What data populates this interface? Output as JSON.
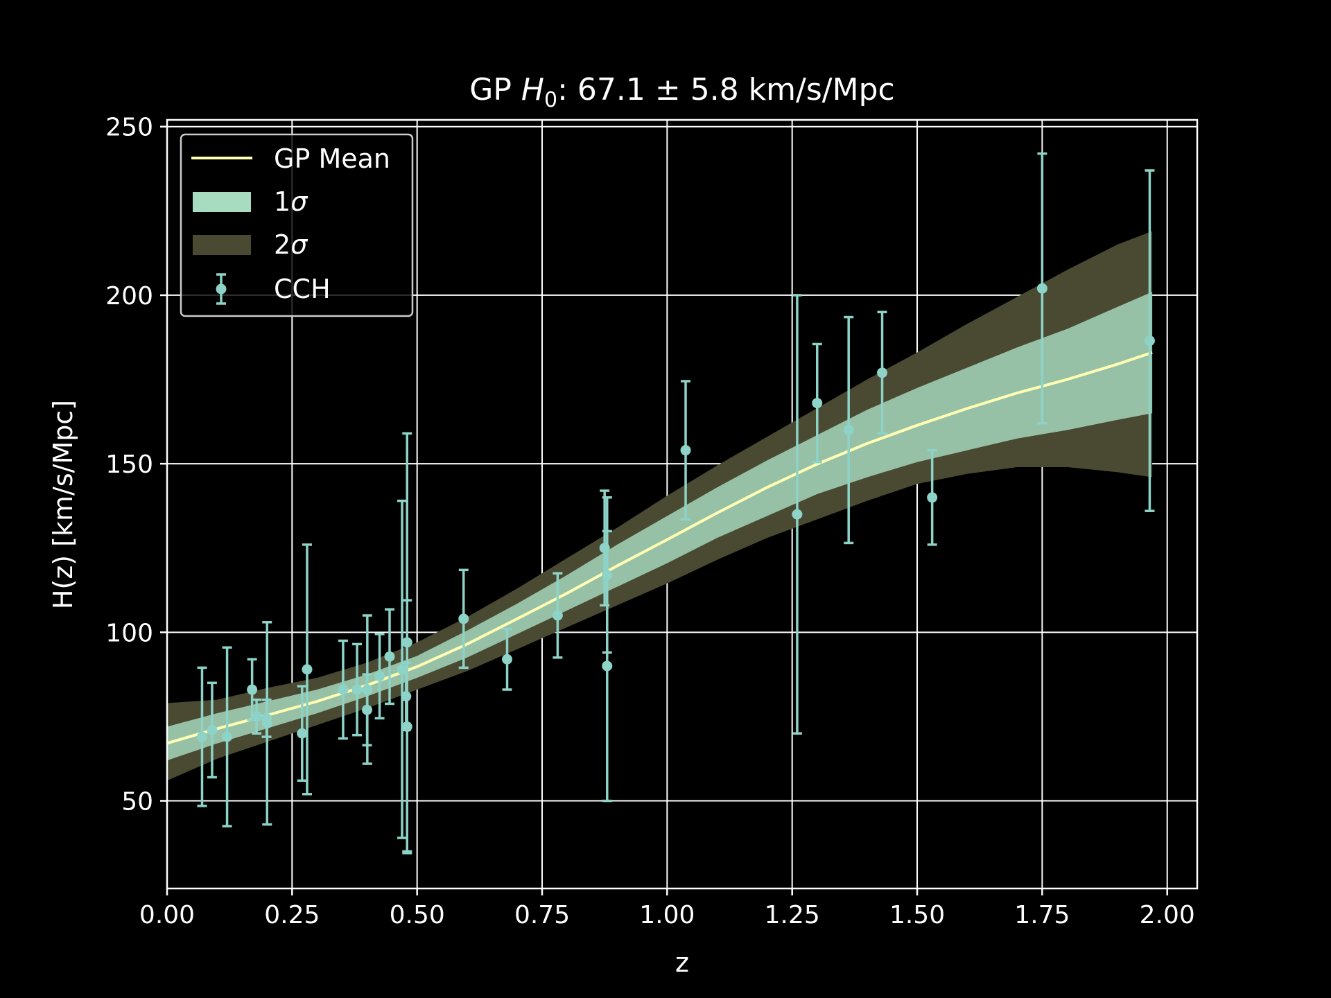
{
  "chart_data": {
    "type": "scatter",
    "title": {
      "prefix": "GP ",
      "symbol": "H",
      "subscript": "0",
      "suffix": ": 67.1 ± 5.8 km/s/Mpc"
    },
    "xlabel": "z",
    "ylabel": "H(z) [km/s/Mpc]",
    "xlim": [
      0.0,
      2.06
    ],
    "ylim": [
      24,
      252
    ],
    "xticks": [
      {
        "value": 0.0,
        "label": "0.00"
      },
      {
        "value": 0.25,
        "label": "0.25"
      },
      {
        "value": 0.5,
        "label": "0.50"
      },
      {
        "value": 0.75,
        "label": "0.75"
      },
      {
        "value": 1.0,
        "label": "1.00"
      },
      {
        "value": 1.25,
        "label": "1.25"
      },
      {
        "value": 1.5,
        "label": "1.50"
      },
      {
        "value": 1.75,
        "label": "1.75"
      },
      {
        "value": 2.0,
        "label": "2.00"
      }
    ],
    "yticks": [
      {
        "value": 50,
        "label": "50"
      },
      {
        "value": 100,
        "label": "100"
      },
      {
        "value": 150,
        "label": "150"
      },
      {
        "value": 200,
        "label": "200"
      },
      {
        "value": 250,
        "label": "250"
      }
    ],
    "grid": true,
    "legend_position": "top-left",
    "legend": [
      {
        "key": "mean",
        "name": "GP Mean",
        "symbol": ""
      },
      {
        "key": "band1",
        "name": "1",
        "symbol": "σ"
      },
      {
        "key": "band2",
        "name": "2",
        "symbol": "σ"
      },
      {
        "key": "data",
        "name": "CCH",
        "symbol": ""
      }
    ],
    "colors": {
      "mean": "#ffffb3",
      "band1": "#a8dcc0",
      "band2": "#4a4a33",
      "data": "#8dd3c7",
      "axes": "#ffffff",
      "grid": "#ffffff"
    },
    "gp_curve": {
      "x": [
        0.0,
        0.1,
        0.2,
        0.3,
        0.4,
        0.5,
        0.6,
        0.7,
        0.8,
        0.9,
        1.0,
        1.1,
        1.2,
        1.3,
        1.4,
        1.5,
        1.6,
        1.7,
        1.8,
        1.9,
        1.97
      ],
      "mean": [
        67.1,
        71.4,
        75.4,
        79.5,
        84.3,
        89.8,
        96.5,
        104.0,
        111.6,
        119.7,
        127.5,
        135.4,
        143.0,
        149.9,
        156.0,
        161.4,
        166.4,
        171.0,
        175.0,
        179.5,
        183.0
      ],
      "sigma1_lower": [
        62.0,
        67.0,
        71.5,
        76.0,
        81.0,
        86.5,
        92.5,
        99.5,
        106.5,
        113.5,
        120.5,
        128.0,
        134.5,
        141.0,
        146.0,
        150.5,
        154.0,
        157.5,
        160.0,
        163.0,
        165.0
      ],
      "sigma1_upper": [
        72.0,
        76.0,
        79.5,
        83.0,
        87.5,
        93.0,
        100.5,
        108.5,
        117.0,
        126.0,
        134.5,
        143.0,
        151.0,
        158.5,
        166.0,
        172.5,
        178.5,
        184.5,
        190.0,
        196.5,
        201.0
      ],
      "sigma2_lower": [
        56.0,
        62.5,
        67.5,
        72.5,
        77.5,
        83.0,
        88.5,
        95.0,
        101.5,
        108.0,
        114.5,
        121.5,
        128.0,
        133.5,
        139.0,
        144.0,
        147.0,
        149.0,
        149.0,
        147.5,
        146.0
      ],
      "sigma2_upper": [
        79.0,
        80.0,
        83.5,
        86.5,
        91.0,
        97.0,
        104.5,
        113.0,
        122.0,
        131.0,
        140.5,
        149.5,
        158.0,
        166.5,
        175.0,
        183.0,
        191.5,
        199.5,
        207.5,
        215.0,
        219.0
      ]
    },
    "points": [
      {
        "z": 0.07,
        "h": 69.0,
        "err": 20.5
      },
      {
        "z": 0.09,
        "h": 71.0,
        "err": 14.0
      },
      {
        "z": 0.12,
        "h": 69.0,
        "err": 26.5
      },
      {
        "z": 0.17,
        "h": 83.0,
        "err": 9.0
      },
      {
        "z": 0.179,
        "h": 75.0,
        "err": 5.0
      },
      {
        "z": 0.199,
        "h": 74.5,
        "err": 5.5
      },
      {
        "z": 0.2,
        "h": 73.0,
        "err": 30.0
      },
      {
        "z": 0.27,
        "h": 70.0,
        "err": 14.0
      },
      {
        "z": 0.28,
        "h": 89.0,
        "err": 37.0
      },
      {
        "z": 0.352,
        "h": 83.0,
        "err": 14.5
      },
      {
        "z": 0.38,
        "h": 83.0,
        "err": 13.5
      },
      {
        "z": 0.4,
        "h": 77.0,
        "err": 10.5
      },
      {
        "z": 0.4004,
        "h": 83.0,
        "err": 22.0
      },
      {
        "z": 0.425,
        "h": 87.0,
        "err": 12.5
      },
      {
        "z": 0.445,
        "h": 92.8,
        "err": 14.0
      },
      {
        "z": 0.47,
        "h": 89.0,
        "err": 50.0
      },
      {
        "z": 0.478,
        "h": 81.0,
        "err": 10.0
      },
      {
        "z": 0.48,
        "h": 97.0,
        "err": 62.0
      },
      {
        "z": 0.48,
        "h": 72.0,
        "err": 37.5
      },
      {
        "z": 0.593,
        "h": 104.0,
        "err": 14.5
      },
      {
        "z": 0.68,
        "h": 92.0,
        "err": 9.0
      },
      {
        "z": 0.781,
        "h": 105.0,
        "err": 12.5
      },
      {
        "z": 0.875,
        "h": 125.0,
        "err": 17.0
      },
      {
        "z": 0.88,
        "h": 90.0,
        "err": 40.0
      },
      {
        "z": 0.88,
        "h": 117.0,
        "err": 23.0
      },
      {
        "z": 1.037,
        "h": 154.0,
        "err": 20.5
      },
      {
        "z": 1.26,
        "h": 135.0,
        "err": 65.0
      },
      {
        "z": 1.3,
        "h": 168.0,
        "err": 17.5
      },
      {
        "z": 1.363,
        "h": 160.0,
        "err": 33.5
      },
      {
        "z": 1.43,
        "h": 177.0,
        "err": 18.0
      },
      {
        "z": 1.53,
        "h": 140.0,
        "err": 14.0
      },
      {
        "z": 1.75,
        "h": 202.0,
        "err": 40.0
      },
      {
        "z": 1.965,
        "h": 186.5,
        "err": 50.5
      }
    ]
  }
}
